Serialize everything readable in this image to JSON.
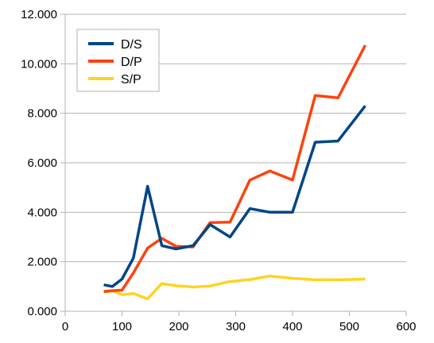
{
  "chart_data": {
    "type": "line",
    "title": "",
    "xlabel": "",
    "ylabel": "",
    "xlim": [
      0,
      600
    ],
    "ylim": [
      0,
      12
    ],
    "xticks": [
      {
        "value": 0,
        "label": "0"
      },
      {
        "value": 100,
        "label": "100"
      },
      {
        "value": 200,
        "label": "200"
      },
      {
        "value": 300,
        "label": "300"
      },
      {
        "value": 400,
        "label": "400"
      },
      {
        "value": 500,
        "label": "500"
      },
      {
        "value": 600,
        "label": "600"
      }
    ],
    "yticks": [
      {
        "value": 0,
        "label": "0.000"
      },
      {
        "value": 2,
        "label": "2.000"
      },
      {
        "value": 4,
        "label": "4.000"
      },
      {
        "value": 6,
        "label": "6.000"
      },
      {
        "value": 8,
        "label": "8.000"
      },
      {
        "value": 10,
        "label": "10.000"
      },
      {
        "value": 12,
        "label": "12.000"
      }
    ],
    "grid": {
      "horizontal": true,
      "vertical": false
    },
    "legend": {
      "position": "top-left"
    },
    "series": [
      {
        "name": "D/S",
        "color": "#004586",
        "points": [
          [
            68,
            1.07
          ],
          [
            83,
            1.0
          ],
          [
            100,
            1.3
          ],
          [
            120,
            2.15
          ],
          [
            145,
            5.05
          ],
          [
            170,
            2.65
          ],
          [
            195,
            2.52
          ],
          [
            225,
            2.65
          ],
          [
            255,
            3.5
          ],
          [
            290,
            3.0
          ],
          [
            325,
            4.15
          ],
          [
            360,
            4.0
          ],
          [
            400,
            4.0
          ],
          [
            440,
            6.83
          ],
          [
            480,
            6.88
          ],
          [
            528,
            8.3
          ]
        ]
      },
      {
        "name": "D/P",
        "color": "#ff420e",
        "points": [
          [
            68,
            0.8
          ],
          [
            83,
            0.83
          ],
          [
            100,
            0.85
          ],
          [
            120,
            1.55
          ],
          [
            145,
            2.55
          ],
          [
            170,
            2.95
          ],
          [
            195,
            2.62
          ],
          [
            225,
            2.6
          ],
          [
            255,
            3.58
          ],
          [
            290,
            3.6
          ],
          [
            325,
            5.3
          ],
          [
            360,
            5.67
          ],
          [
            400,
            5.3
          ],
          [
            440,
            8.72
          ],
          [
            480,
            8.62
          ],
          [
            528,
            10.75
          ]
        ]
      },
      {
        "name": "S/P",
        "color": "#ffd320",
        "points": [
          [
            68,
            0.77
          ],
          [
            83,
            0.83
          ],
          [
            100,
            0.67
          ],
          [
            120,
            0.72
          ],
          [
            145,
            0.5
          ],
          [
            170,
            1.12
          ],
          [
            195,
            1.03
          ],
          [
            225,
            0.98
          ],
          [
            255,
            1.02
          ],
          [
            290,
            1.2
          ],
          [
            325,
            1.28
          ],
          [
            360,
            1.42
          ],
          [
            400,
            1.33
          ],
          [
            440,
            1.27
          ],
          [
            480,
            1.27
          ],
          [
            528,
            1.3
          ]
        ]
      }
    ]
  }
}
